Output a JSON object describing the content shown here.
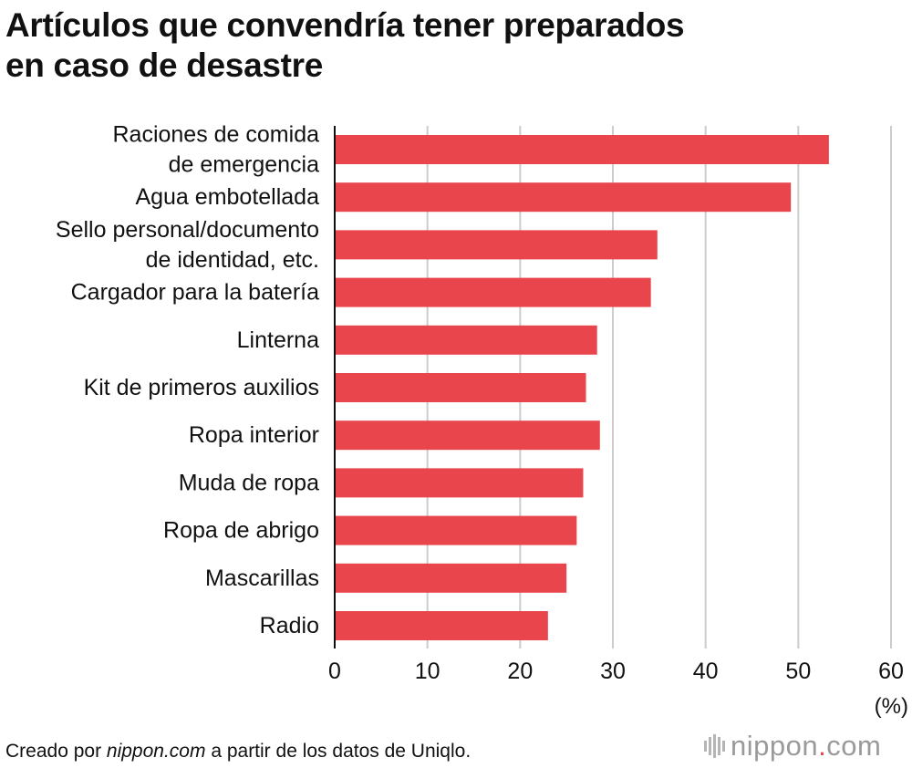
{
  "title": {
    "line1": "Artículos que convendría tener preparados",
    "line2": "en caso de desastre"
  },
  "footer": {
    "prefix": "Creado por ",
    "source_site": "nippon.com",
    "suffix": " a partir de los datos de Uniqlo."
  },
  "logo": {
    "name": "nippon",
    "dot": ".",
    "tld": "com"
  },
  "chart_data": {
    "type": "bar",
    "orientation": "horizontal",
    "title": "Artículos que convendría tener preparados en caso de desastre",
    "xlabel": "(%)",
    "ylabel": "",
    "xlim": [
      0,
      60
    ],
    "xticks": [
      0,
      10,
      20,
      30,
      40,
      50,
      60
    ],
    "grid": true,
    "bar_color": "#e8454c",
    "grid_color": "#cccccc",
    "categories": [
      [
        "Raciones de comida",
        "de emergencia"
      ],
      [
        "Agua embotellada"
      ],
      [
        "Sello personal/documento",
        "de identidad, etc."
      ],
      [
        "Cargador para la batería"
      ],
      [
        "Linterna"
      ],
      [
        "Kit de primeros auxilios"
      ],
      [
        "Ropa interior"
      ],
      [
        "Muda de ropa"
      ],
      [
        "Ropa de abrigo"
      ],
      [
        "Mascarillas"
      ],
      [
        "Radio"
      ]
    ],
    "values": [
      53.3,
      49.2,
      34.8,
      34.1,
      28.3,
      27.1,
      28.6,
      26.8,
      26.1,
      25.0,
      23.0
    ]
  }
}
